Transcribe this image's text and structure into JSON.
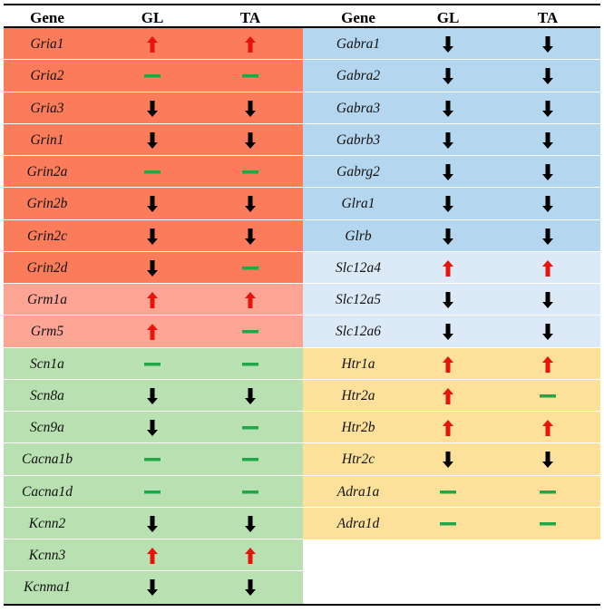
{
  "headers": {
    "gene": "Gene",
    "gl": "GL",
    "ta": "TA"
  },
  "legend": {
    "up": "arrow-up",
    "down": "arrow-down",
    "none": "dash"
  },
  "colors": {
    "up_arrow": "#e8140c",
    "down_arrow": "#000000",
    "dash": "#1fa847",
    "glutamate": "#fa7c5a",
    "metabotropic": "#fca595",
    "gaba_glycine": "#b5d6ef",
    "slc12a": "#dce9f6",
    "ion_channel": "#b8e0b0",
    "monoamine": "#fde09a"
  },
  "left": [
    {
      "gene": "Gria1",
      "gl": "up",
      "ta": "up",
      "group": "glutamate"
    },
    {
      "gene": "Gria2",
      "gl": "none",
      "ta": "none",
      "group": "glutamate"
    },
    {
      "gene": "Gria3",
      "gl": "down",
      "ta": "down",
      "group": "glutamate"
    },
    {
      "gene": "Grin1",
      "gl": "down",
      "ta": "down",
      "group": "glutamate"
    },
    {
      "gene": "Grin2a",
      "gl": "none",
      "ta": "none",
      "group": "glutamate"
    },
    {
      "gene": "Grin2b",
      "gl": "down",
      "ta": "down",
      "group": "glutamate"
    },
    {
      "gene": "Grin2c",
      "gl": "down",
      "ta": "down",
      "group": "glutamate"
    },
    {
      "gene": "Grin2d",
      "gl": "down",
      "ta": "none",
      "group": "glutamate"
    },
    {
      "gene": "Grm1a",
      "gl": "up",
      "ta": "up",
      "group": "metabotropic"
    },
    {
      "gene": "Grm5",
      "gl": "up",
      "ta": "none",
      "group": "metabotropic"
    },
    {
      "gene": "Scn1a",
      "gl": "none",
      "ta": "none",
      "group": "ion_channel"
    },
    {
      "gene": "Scn8a",
      "gl": "down",
      "ta": "down",
      "group": "ion_channel"
    },
    {
      "gene": "Scn9a",
      "gl": "down",
      "ta": "none",
      "group": "ion_channel"
    },
    {
      "gene": "Cacna1b",
      "gl": "none",
      "ta": "none",
      "group": "ion_channel"
    },
    {
      "gene": "Cacna1d",
      "gl": "none",
      "ta": "none",
      "group": "ion_channel"
    },
    {
      "gene": "Kcnn2",
      "gl": "down",
      "ta": "down",
      "group": "ion_channel"
    },
    {
      "gene": "Kcnn3",
      "gl": "up",
      "ta": "up",
      "group": "ion_channel"
    },
    {
      "gene": "Kcnma1",
      "gl": "down",
      "ta": "down",
      "group": "ion_channel"
    }
  ],
  "right": [
    {
      "gene": "Gabra1",
      "gl": "down",
      "ta": "down",
      "group": "gaba_glycine"
    },
    {
      "gene": "Gabra2",
      "gl": "down",
      "ta": "down",
      "group": "gaba_glycine"
    },
    {
      "gene": "Gabra3",
      "gl": "down",
      "ta": "down",
      "group": "gaba_glycine"
    },
    {
      "gene": "Gabrb3",
      "gl": "down",
      "ta": "down",
      "group": "gaba_glycine"
    },
    {
      "gene": "Gabrg2",
      "gl": "down",
      "ta": "down",
      "group": "gaba_glycine"
    },
    {
      "gene": "Glra1",
      "gl": "down",
      "ta": "down",
      "group": "gaba_glycine"
    },
    {
      "gene": "Glrb",
      "gl": "down",
      "ta": "down",
      "group": "gaba_glycine"
    },
    {
      "gene": "Slc12a4",
      "gl": "up",
      "ta": "up",
      "group": "slc12a"
    },
    {
      "gene": "Slc12a5",
      "gl": "down",
      "ta": "down",
      "group": "slc12a"
    },
    {
      "gene": "Slc12a6",
      "gl": "down",
      "ta": "down",
      "group": "slc12a"
    },
    {
      "gene": "Htr1a",
      "gl": "up",
      "ta": "up",
      "group": "monoamine"
    },
    {
      "gene": "Htr2a",
      "gl": "up",
      "ta": "none",
      "group": "monoamine"
    },
    {
      "gene": "Htr2b",
      "gl": "up",
      "ta": "up",
      "group": "monoamine"
    },
    {
      "gene": "Htr2c",
      "gl": "down",
      "ta": "down",
      "group": "monoamine"
    },
    {
      "gene": "Adra1a",
      "gl": "none",
      "ta": "none",
      "group": "monoamine"
    },
    {
      "gene": "Adra1d",
      "gl": "none",
      "ta": "none",
      "group": "monoamine"
    }
  ]
}
